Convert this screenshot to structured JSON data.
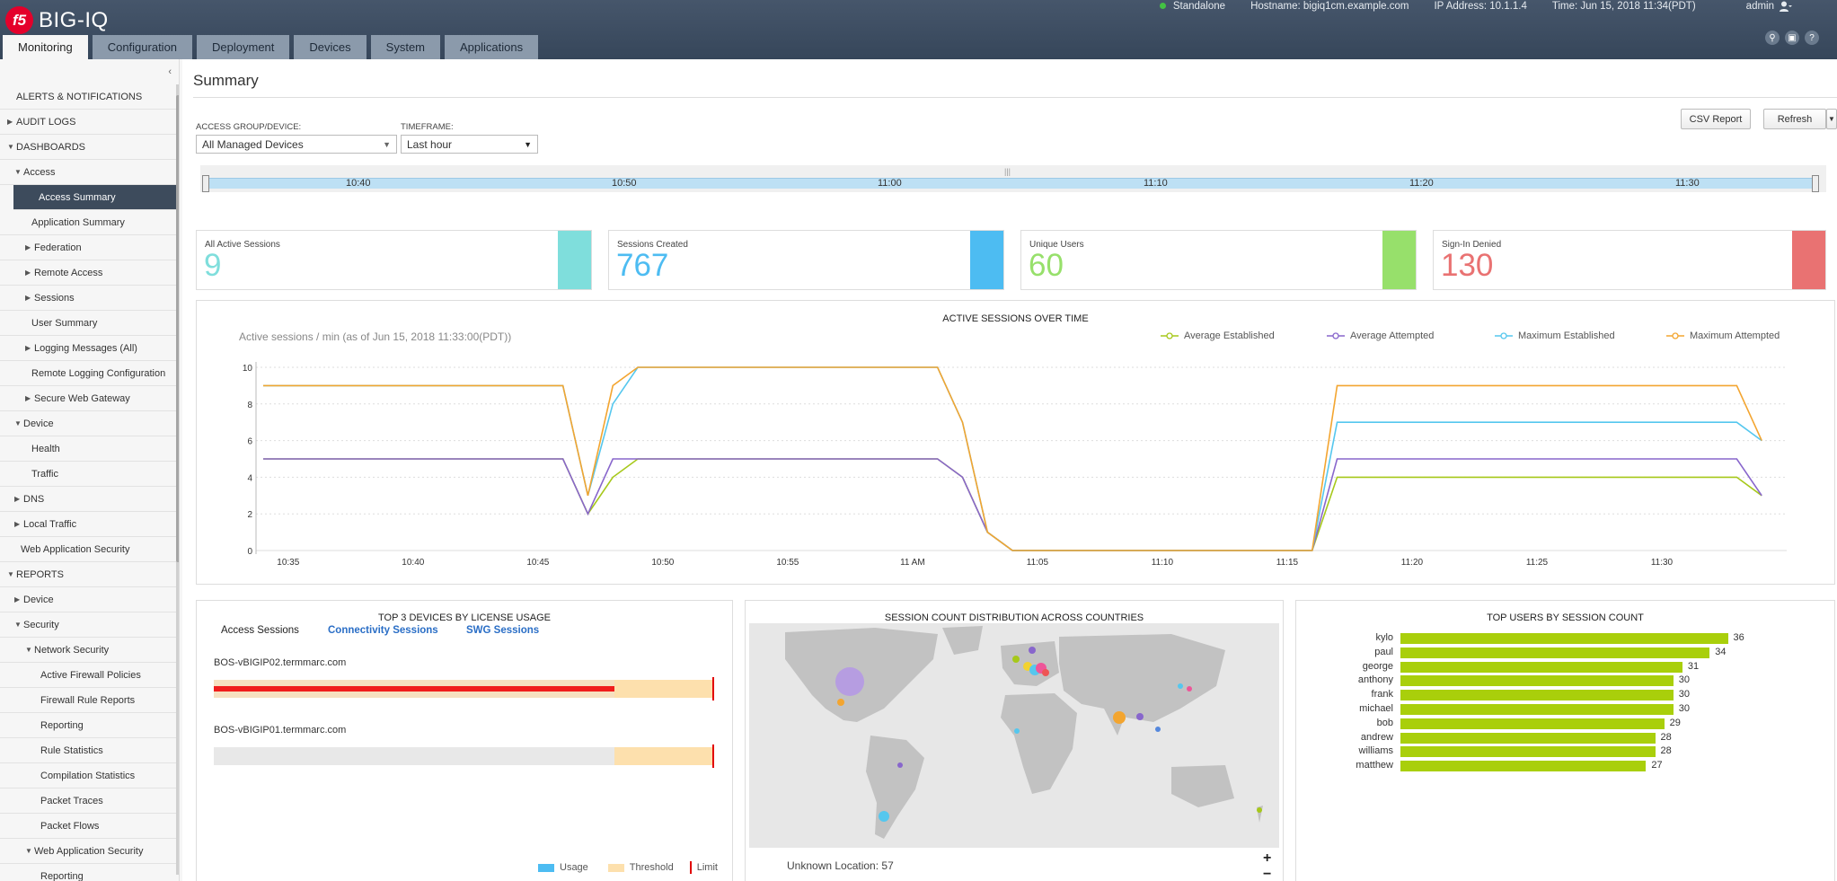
{
  "header": {
    "brand": "BIG-IQ",
    "logo_text": "f5",
    "status": "Standalone",
    "hostname": "Hostname: bigiq1cm.example.com",
    "ip": "IP Address: 10.1.1.4",
    "time": "Time: Jun 15, 2018 11:34(PDT)",
    "user": "admin",
    "tabs": [
      "Monitoring",
      "Configuration",
      "Deployment",
      "Devices",
      "System",
      "Applications"
    ]
  },
  "sidebar": {
    "items": [
      {
        "label": "ALERTS & NOTIFICATIONS",
        "level": 0,
        "tri": ""
      },
      {
        "label": "AUDIT LOGS",
        "level": 0,
        "tri": "▶"
      },
      {
        "label": "DASHBOARDS",
        "level": 0,
        "tri": "▼"
      },
      {
        "label": "Access",
        "level": 1,
        "tri": "▼"
      },
      {
        "label": "Access Summary",
        "level": 2,
        "tri": "",
        "active": true
      },
      {
        "label": "Application Summary",
        "level": 2,
        "tri": ""
      },
      {
        "label": "Federation",
        "level": 2,
        "tri": "▶"
      },
      {
        "label": "Remote Access",
        "level": 2,
        "tri": "▶"
      },
      {
        "label": "Sessions",
        "level": 2,
        "tri": "▶"
      },
      {
        "label": "User Summary",
        "level": 2,
        "tri": ""
      },
      {
        "label": "Logging Messages (All)",
        "level": 2,
        "tri": "▶"
      },
      {
        "label": "Remote Logging Configuration",
        "level": 2,
        "tri": ""
      },
      {
        "label": "Secure Web Gateway",
        "level": 2,
        "tri": "▶"
      },
      {
        "label": "Device",
        "level": 1,
        "tri": "▼"
      },
      {
        "label": "Health",
        "level": 2,
        "tri": ""
      },
      {
        "label": "Traffic",
        "level": 2,
        "tri": ""
      },
      {
        "label": "DNS",
        "level": 1,
        "tri": "▶"
      },
      {
        "label": "Local Traffic",
        "level": 1,
        "tri": "▶"
      },
      {
        "label": "Web Application Security",
        "level": 1,
        "tri": ""
      },
      {
        "label": "REPORTS",
        "level": 0,
        "tri": "▼"
      },
      {
        "label": "Device",
        "level": 1,
        "tri": "▶"
      },
      {
        "label": "Security",
        "level": 1,
        "tri": "▼"
      },
      {
        "label": "Network Security",
        "level": 2,
        "tri": "▼"
      },
      {
        "label": "Active Firewall Policies",
        "level": 3,
        "tri": ""
      },
      {
        "label": "Firewall Rule Reports",
        "level": 3,
        "tri": ""
      },
      {
        "label": "Reporting",
        "level": 3,
        "tri": ""
      },
      {
        "label": "Rule Statistics",
        "level": 3,
        "tri": ""
      },
      {
        "label": "Compilation Statistics",
        "level": 3,
        "tri": ""
      },
      {
        "label": "Packet Traces",
        "level": 3,
        "tri": ""
      },
      {
        "label": "Packet Flows",
        "level": 3,
        "tri": ""
      },
      {
        "label": "Web Application Security",
        "level": 2,
        "tri": "▼"
      },
      {
        "label": "Reporting",
        "level": 3,
        "tri": ""
      }
    ]
  },
  "main": {
    "title": "Summary",
    "access_label": "ACCESS GROUP/DEVICE:",
    "access_value": "All Managed Devices",
    "timeframe_label": "TIMEFRAME:",
    "timeframe_value": "Last hour",
    "csv_button": "CSV Report",
    "refresh_button": "Refresh",
    "timeline_ticks": [
      "10:40",
      "10:50",
      "11:00",
      "11:10",
      "11:20",
      "11:30"
    ]
  },
  "kpis": [
    {
      "label": "All Active Sessions",
      "value": "9",
      "color": "#7fdedc"
    },
    {
      "label": "Sessions Created",
      "value": "767",
      "color": "#4dbcf2"
    },
    {
      "label": "Unique Users",
      "value": "60",
      "color": "#97e06b"
    },
    {
      "label": "Sign-In Denied",
      "value": "130",
      "color": "#e97272"
    }
  ],
  "sessions_chart": {
    "title": "ACTIVE SESSIONS OVER TIME",
    "subtitle": "Active sessions / min (as of Jun 15, 2018 11:33:00(PDT))",
    "legend": [
      {
        "name": "Average Established",
        "color": "#a6c81a"
      },
      {
        "name": "Average Attempted",
        "color": "#8866cc"
      },
      {
        "name": "Maximum Established",
        "color": "#55c7ee"
      },
      {
        "name": "Maximum Attempted",
        "color": "#f3a530"
      }
    ]
  },
  "chart_data": [
    {
      "type": "line",
      "title": "ACTIVE SESSIONS OVER TIME",
      "ylabel": "",
      "ylim": [
        0,
        10
      ],
      "yticks": [
        "0",
        "2",
        "4",
        "6",
        "8",
        "10"
      ],
      "xticks": [
        "10:35",
        "10:40",
        "10:45",
        "10:50",
        "10:55",
        "11 AM",
        "11:05",
        "11:10",
        "11:15",
        "11:20",
        "11:25",
        "11:30"
      ],
      "xlim": [
        34,
        95
      ],
      "series": [
        {
          "name": "Average Established",
          "color": "#a6c81a",
          "x": [
            34,
            46,
            47,
            48,
            49,
            61,
            62,
            63,
            64,
            76,
            77,
            93,
            94
          ],
          "y": [
            5,
            5,
            2,
            4,
            5,
            5,
            4,
            1,
            0,
            0,
            4,
            4,
            3
          ]
        },
        {
          "name": "Average Attempted",
          "color": "#8866cc",
          "x": [
            34,
            46,
            47,
            48,
            61,
            62,
            63,
            64,
            76,
            77,
            93,
            94
          ],
          "y": [
            5,
            5,
            2,
            5,
            5,
            4,
            1,
            0,
            0,
            5,
            5,
            3
          ]
        },
        {
          "name": "Maximum Established",
          "color": "#55c7ee",
          "x": [
            34,
            46,
            47,
            48,
            49,
            61,
            62,
            63,
            64,
            76,
            77,
            93,
            94
          ],
          "y": [
            9,
            9,
            3,
            8,
            10,
            10,
            7,
            1,
            0,
            0,
            7,
            7,
            6
          ]
        },
        {
          "name": "Maximum Attempted",
          "color": "#f3a530",
          "x": [
            34,
            46,
            47,
            48,
            49,
            61,
            62,
            63,
            64,
            76,
            77,
            93,
            94
          ],
          "y": [
            9,
            9,
            3,
            9,
            10,
            10,
            7,
            1,
            0,
            0,
            9,
            9,
            6
          ]
        }
      ]
    },
    {
      "type": "bar",
      "title": "TOP USERS BY SESSION COUNT",
      "categories": [
        "kylo",
        "paul",
        "george",
        "anthony",
        "frank",
        "michael",
        "bob",
        "andrew",
        "williams",
        "matthew"
      ],
      "values": [
        36,
        34,
        31,
        30,
        30,
        30,
        29,
        28,
        28,
        27
      ],
      "color": "#a9cf0b"
    }
  ],
  "license_panel": {
    "title": "TOP 3 DEVICES BY LICENSE USAGE",
    "tabs": [
      "Access Sessions",
      "Connectivity Sessions",
      "SWG Sessions"
    ],
    "devices": [
      {
        "name": "BOS-vBIGIP02.termmarc.com",
        "usage": 1.0
      },
      {
        "name": "BOS-vBIGIP01.termmarc.com",
        "usage": 0.0
      }
    ],
    "legend": [
      "Usage",
      "Threshold",
      "Limit"
    ]
  },
  "map_panel": {
    "title": "SESSION COUNT DISTRIBUTION ACROSS COUNTRIES",
    "unknown": "Unknown Location: 57",
    "zoom_in": "+",
    "zoom_out": "−"
  },
  "users_panel": {
    "title": "TOP USERS BY SESSION COUNT"
  }
}
